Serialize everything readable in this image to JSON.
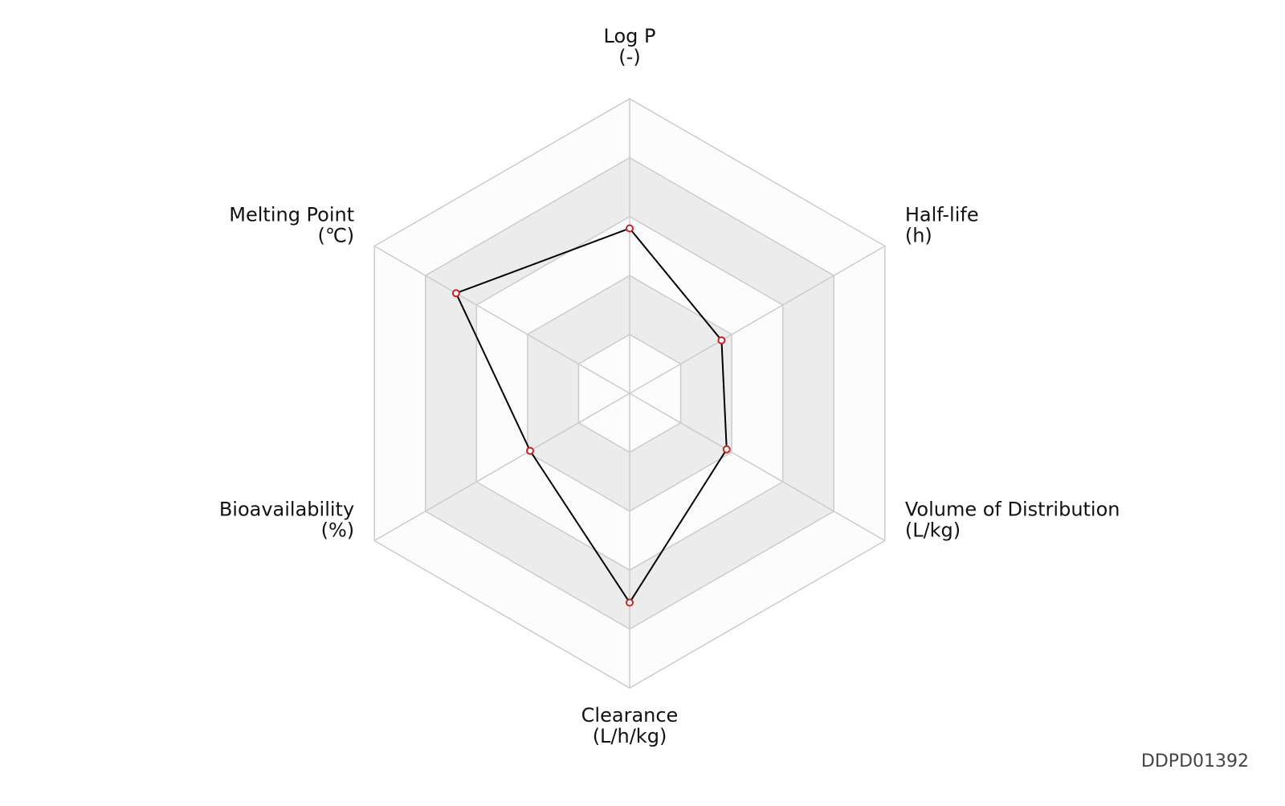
{
  "chart_data": {
    "type": "radar",
    "categories": [
      "Log P",
      "Half-life",
      "Volume of Distribution",
      "Clearance",
      "Bioavailability",
      "Melting Point"
    ],
    "units": [
      "(-)",
      "(h)",
      "(L/kg)",
      "(L/h/kg)",
      "(%)",
      "(℃)"
    ],
    "values": [
      0.56,
      0.36,
      0.38,
      0.71,
      0.39,
      0.68
    ],
    "rlim": [
      0,
      1
    ],
    "rticks": [
      0.2,
      0.4,
      0.6,
      0.8,
      1
    ],
    "line_color": "#000000",
    "marker_color": "#cc2222",
    "band_colors": [
      "#fcfcfc",
      "#ececec"
    ],
    "watermark": "DDPD01392"
  }
}
